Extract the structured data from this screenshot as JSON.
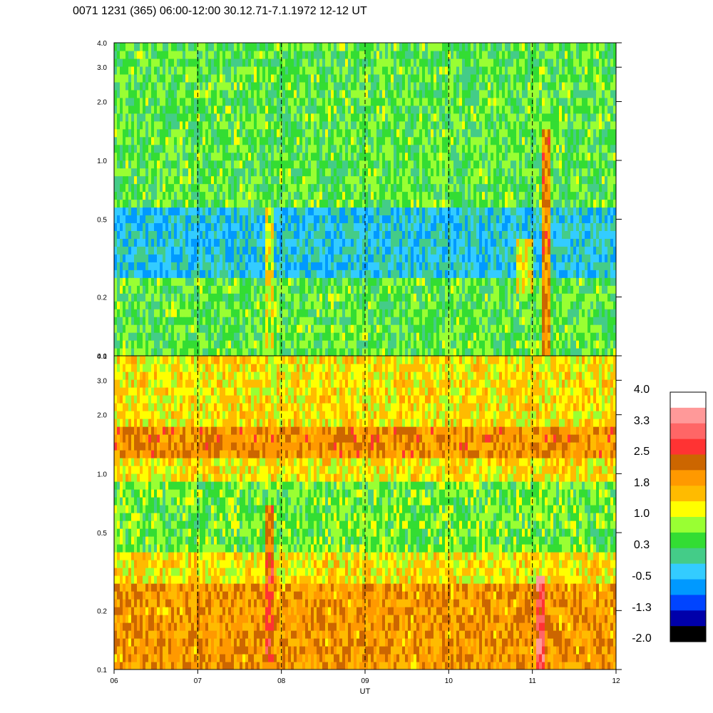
{
  "chart_data": {
    "type": "heatmap",
    "title": "0071 1231 (365) 06:00-12:00 30.12.71-7.1.1972  12-12 UT",
    "xlabel": "UT",
    "x_tick_labels": [
      "06",
      "07",
      "08",
      "09",
      "10",
      "11",
      "12"
    ],
    "x_ticks": [
      6,
      7,
      8,
      9,
      10,
      11,
      12
    ],
    "xlim": [
      6,
      12
    ],
    "y_scale": "log",
    "y_tick_labels": [
      "0.1",
      "0.2",
      "0.5",
      "1.0",
      "2.0",
      "3.0",
      "4.0"
    ],
    "y_ticks": [
      0.1,
      0.2,
      0.5,
      1.0,
      2.0,
      3.0,
      4.0
    ],
    "ylim": [
      0.1,
      4.0
    ],
    "vertical_dashed_lines_at": [
      7,
      8,
      9,
      10,
      11
    ],
    "panels": [
      {
        "name": "upper",
        "dominant_level": 0.5,
        "features": [
          {
            "type": "band",
            "x": [
              6,
              12
            ],
            "y": [
              0.25,
              0.6
            ],
            "level": -0.3
          },
          {
            "type": "streak",
            "x": [
              11.1,
              11.2
            ],
            "y": [
              0.1,
              1.5
            ],
            "level": 2.0
          },
          {
            "type": "streak",
            "x": [
              7.8,
              7.9
            ],
            "y": [
              0.1,
              0.6
            ],
            "level": 1.1
          },
          {
            "type": "patch",
            "x": [
              10.8,
              11.0
            ],
            "y": [
              0.2,
              0.4
            ],
            "level": 1.2
          }
        ]
      },
      {
        "name": "lower",
        "dominant_level": 1.3,
        "features": [
          {
            "type": "band",
            "x": [
              6,
              12
            ],
            "y": [
              1.2,
              1.7
            ],
            "level": 2.0
          },
          {
            "type": "band",
            "x": [
              6,
              12
            ],
            "y": [
              0.1,
              0.28
            ],
            "level": 1.9
          },
          {
            "type": "band",
            "x": [
              6,
              12
            ],
            "y": [
              0.4,
              0.9
            ],
            "level": 0.6
          },
          {
            "type": "streak",
            "x": [
              11.05,
              11.15
            ],
            "y": [
              0.1,
              0.3
            ],
            "level": 3.0
          },
          {
            "type": "streak",
            "x": [
              7.8,
              7.9
            ],
            "y": [
              0.1,
              0.7
            ],
            "level": 2.4
          }
        ]
      }
    ],
    "colorbar": {
      "tick_labels": [
        "4.0",
        "3.3",
        "2.5",
        "1.8",
        "1.0",
        "0.3",
        "-0.5",
        "-1.3",
        "-2.0"
      ],
      "ticks": [
        4.0,
        3.3,
        2.5,
        1.8,
        1.0,
        0.3,
        -0.5,
        -1.3,
        -2.0
      ],
      "range": [
        -2.0,
        4.0
      ],
      "colors_top_to_bottom": [
        "#ffffff",
        "#ff9999",
        "#ff6666",
        "#ff3333",
        "#cc6600",
        "#ff9900",
        "#ffbb00",
        "#ffff00",
        "#99ff33",
        "#33dd33",
        "#44cc88",
        "#33ccff",
        "#0099ff",
        "#0044ff",
        "#0000aa",
        "#000000"
      ]
    }
  }
}
